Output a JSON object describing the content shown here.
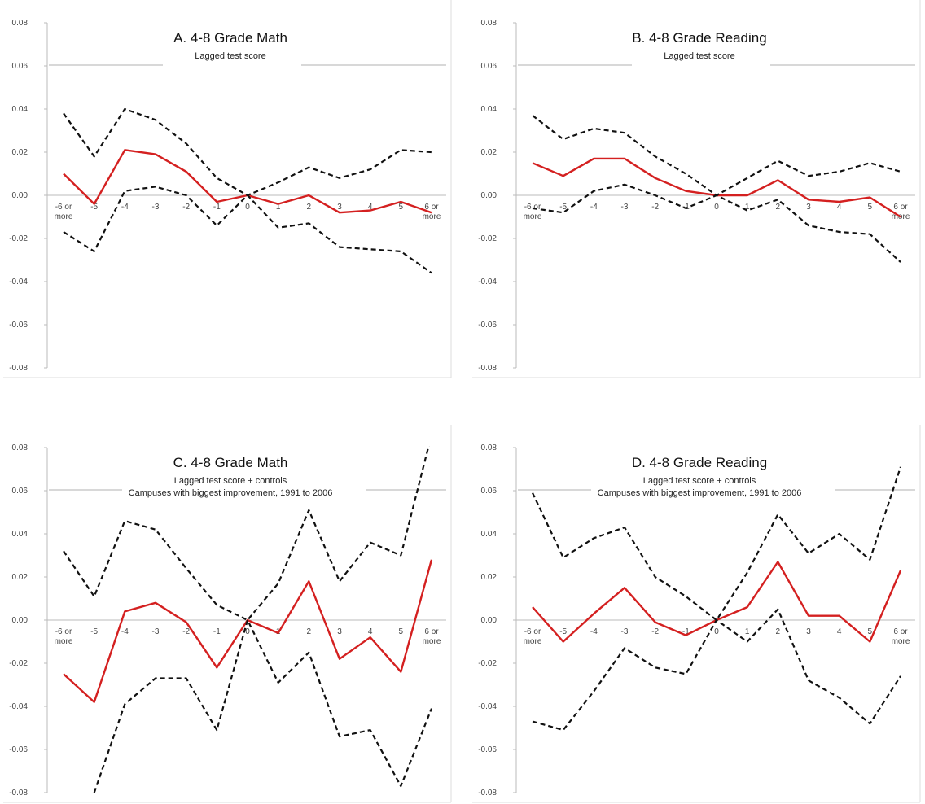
{
  "chart_data": [
    {
      "type": "line",
      "title": "A. 4-8 Grade Math",
      "subtitles": [
        "Lagged test score"
      ],
      "categories": [
        "-6 or more",
        "-5",
        "-4",
        "-3",
        "-2",
        "-1",
        "0",
        "1",
        "2",
        "3",
        "4",
        "5",
        "6 or more"
      ],
      "ylim": [
        -0.08,
        0.08
      ],
      "yticks": [
        "-0.08",
        "-0.06",
        "-0.04",
        "-0.02",
        "0.00",
        "0.02",
        "0.04",
        "0.06",
        "0.08"
      ],
      "grid": false,
      "legend": "none",
      "series": [
        {
          "style": "solid",
          "color": "#d42020",
          "values": [
            0.01,
            -0.004,
            0.021,
            0.019,
            0.011,
            -0.003,
            0.0,
            -0.004,
            0.0,
            -0.008,
            -0.007,
            -0.003,
            -0.008
          ]
        },
        {
          "style": "dashed",
          "color": "#111111",
          "values": [
            0.038,
            0.018,
            0.04,
            0.035,
            0.024,
            0.008,
            0.0,
            0.006,
            0.013,
            0.008,
            0.012,
            0.021,
            0.02
          ]
        },
        {
          "style": "dashed",
          "color": "#111111",
          "values": [
            -0.017,
            -0.026,
            0.002,
            0.004,
            0.0,
            -0.014,
            0.0,
            -0.015,
            -0.013,
            -0.024,
            -0.025,
            -0.026,
            -0.036
          ]
        }
      ]
    },
    {
      "type": "line",
      "title": "B. 4-8 Grade Reading",
      "subtitles": [
        "Lagged test score"
      ],
      "categories": [
        "-6 or more",
        "-5",
        "-4",
        "-3",
        "-2",
        "-1",
        "0",
        "1",
        "2",
        "3",
        "4",
        "5",
        "6 or more"
      ],
      "ylim": [
        -0.08,
        0.08
      ],
      "yticks": [
        "-0.08",
        "-0.06",
        "-0.04",
        "-0.02",
        "0.00",
        "0.02",
        "0.04",
        "0.06",
        "0.08"
      ],
      "grid": false,
      "legend": "none",
      "series": [
        {
          "style": "solid",
          "color": "#d42020",
          "values": [
            0.015,
            0.009,
            0.017,
            0.017,
            0.008,
            0.002,
            0.0,
            0.0,
            0.007,
            -0.002,
            -0.003,
            -0.001,
            -0.01
          ]
        },
        {
          "style": "dashed",
          "color": "#111111",
          "values": [
            0.037,
            0.026,
            0.031,
            0.029,
            0.018,
            0.01,
            0.0,
            0.008,
            0.016,
            0.009,
            0.011,
            0.015,
            0.011
          ]
        },
        {
          "style": "dashed",
          "color": "#111111",
          "values": [
            -0.006,
            -0.008,
            0.002,
            0.005,
            0.0,
            -0.006,
            0.0,
            -0.007,
            -0.002,
            -0.014,
            -0.017,
            -0.018,
            -0.031
          ]
        }
      ]
    },
    {
      "type": "line",
      "title": "C. 4-8 Grade Math",
      "subtitles": [
        "Lagged test score + controls",
        "Campuses with biggest improvement, 1991 to 2006"
      ],
      "categories": [
        "-6 or more",
        "-5",
        "-4",
        "-3",
        "-2",
        "-1",
        "0",
        "1",
        "2",
        "3",
        "4",
        "5",
        "6 or more"
      ],
      "ylim": [
        -0.08,
        0.08
      ],
      "yticks": [
        "-0.08",
        "-0.06",
        "-0.04",
        "-0.02",
        "0.00",
        "0.02",
        "0.04",
        "0.06",
        "0.08"
      ],
      "grid": false,
      "legend": "none",
      "series": [
        {
          "style": "solid",
          "color": "#d42020",
          "values": [
            -0.025,
            -0.038,
            0.004,
            0.008,
            -0.001,
            -0.022,
            0.0,
            -0.006,
            0.018,
            -0.018,
            -0.008,
            -0.024,
            0.028
          ]
        },
        {
          "style": "dashed",
          "color": "#111111",
          "values": [
            0.032,
            0.011,
            0.046,
            0.042,
            0.024,
            0.007,
            0.0,
            0.017,
            0.051,
            0.018,
            0.036,
            0.03,
            0.086
          ]
        },
        {
          "style": "dashed",
          "color": "#111111",
          "values": [
            null,
            -0.08,
            -0.039,
            -0.027,
            -0.027,
            -0.051,
            0.0,
            -0.029,
            -0.015,
            -0.054,
            -0.051,
            -0.077,
            -0.041
          ]
        }
      ]
    },
    {
      "type": "line",
      "title": "D. 4-8 Grade Reading",
      "subtitles": [
        "Lagged test score + controls",
        "Campuses with biggest improvement, 1991 to 2006"
      ],
      "categories": [
        "-6 or more",
        "-5",
        "-4",
        "-3",
        "-2",
        "-1",
        "0",
        "1",
        "2",
        "3",
        "4",
        "5",
        "6 or more"
      ],
      "ylim": [
        -0.08,
        0.08
      ],
      "yticks": [
        "-0.08",
        "-0.06",
        "-0.04",
        "-0.02",
        "0.00",
        "0.02",
        "0.04",
        "0.06",
        "0.08"
      ],
      "grid": false,
      "legend": "none",
      "series": [
        {
          "style": "solid",
          "color": "#d42020",
          "values": [
            0.006,
            -0.01,
            0.003,
            0.015,
            -0.001,
            -0.007,
            0.0,
            0.006,
            0.027,
            0.002,
            0.002,
            -0.01,
            0.023
          ]
        },
        {
          "style": "dashed",
          "color": "#111111",
          "values": [
            0.059,
            0.029,
            0.038,
            0.043,
            0.02,
            0.011,
            0.0,
            0.022,
            0.049,
            0.031,
            0.04,
            0.028,
            0.071
          ]
        },
        {
          "style": "dashed",
          "color": "#111111",
          "values": [
            -0.047,
            -0.051,
            -0.033,
            -0.013,
            -0.022,
            -0.025,
            0.0,
            -0.01,
            0.005,
            -0.028,
            -0.036,
            -0.048,
            -0.026
          ]
        }
      ]
    }
  ]
}
